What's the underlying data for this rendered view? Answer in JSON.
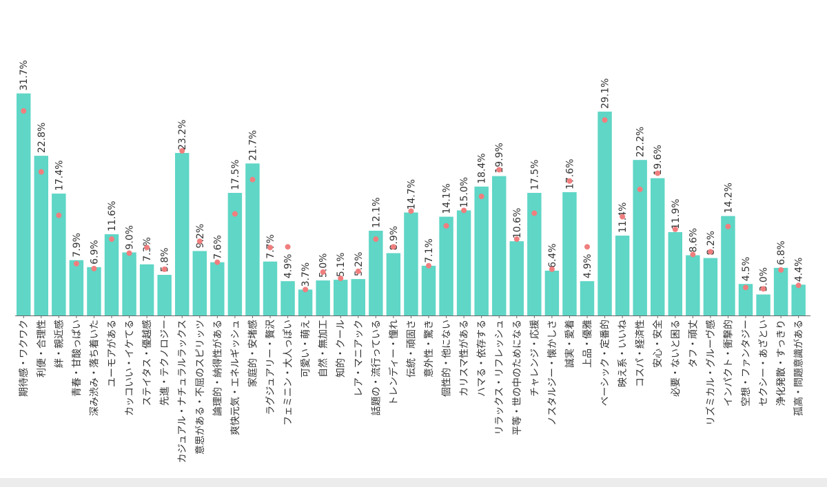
{
  "colors": {
    "bar": "#5fd6c6",
    "marker": "#f07e7e",
    "text": "#333333",
    "axis": "#666666"
  },
  "chart_data": {
    "type": "bar",
    "title": "",
    "xlabel": "",
    "ylabel": "",
    "ylim": [
      0,
      35
    ],
    "grid": false,
    "legend": "none",
    "categories": [
      "期待感・ワクワク",
      "利便・合理性",
      "絆・親近感",
      "青春・甘酸っぱい",
      "深み渋み・落ち着いた",
      "ユーモアがある",
      "カッコいい・イケてる",
      "ステイタス・優越感",
      "先進・テクノロジー",
      "カジュアル・ナチュラルラックス",
      "意思がある・不屈のスピリッツ",
      "論理的・納得性がある",
      "爽快元気・エネルギッシュ",
      "家庭的・安堵感",
      "ラグジュアリー・贅沢",
      "フェミニン・大人っぽい",
      "可愛い・萌え",
      "自然・無加工",
      "知的・クール",
      "レア・マニアック",
      "話題の・流行っている",
      "トレンディー・憧れ",
      "伝統・頑固さ",
      "意外性・驚き",
      "個性的・他にない",
      "カリスマ性がある",
      "ハマる・依存する",
      "リラックス・リフレッシュ",
      "平等・世の中のためになる",
      "チャレンジ・応援",
      "ノスタルジー・懐かしさ",
      "誠実・愛着",
      "上品・優雅",
      "ベーシック・定番的",
      "映え系・いいね",
      "コスパ・経済性",
      "安心・安全",
      "必要・ないと困る",
      "タフ・頑丈",
      "リズミカル・グルーヴ感",
      "インパクト・衝撃的",
      "空想・ファンタジー",
      "セクシー・あざとい",
      "浄化発散・すっきり",
      "孤高・問題意識がある"
    ],
    "series": [
      {
        "type": "bar",
        "values": [
          31.7,
          22.8,
          17.4,
          7.9,
          6.9,
          11.6,
          9.0,
          7.3,
          5.8,
          23.2,
          9.2,
          7.6,
          17.5,
          21.7,
          7.7,
          4.9,
          3.7,
          5.0,
          5.1,
          5.2,
          12.1,
          8.9,
          14.7,
          7.1,
          14.1,
          15.0,
          18.4,
          19.9,
          10.6,
          17.5,
          6.4,
          17.6,
          4.9,
          29.1,
          11.4,
          22.2,
          19.6,
          11.9,
          8.6,
          8.2,
          14.2,
          4.5,
          3.0,
          6.8,
          4.4
        ],
        "data_labels": [
          "31.7%",
          "22.8%",
          "17.4%",
          "7.9%",
          "6.9%",
          "11.6%",
          "9.0%",
          "7.3%",
          "5.8%",
          "23.2%",
          "9.2%",
          "7.6%",
          "17.5%",
          "21.7%",
          "7.7%",
          "4.9%",
          "3.7%",
          "5.0%",
          "5.1%",
          "5.2%",
          "12.1%",
          "8.9%",
          "14.7%",
          "7.1%",
          "14.1%",
          "15.0%",
          "18.4%",
          "19.9%",
          "10.6%",
          "17.5%",
          "6.4%",
          "17.6%",
          "4.9%",
          "29.1%",
          "11.4%",
          "22.2%",
          "19.6%",
          "11.9%",
          "8.6%",
          "8.2%",
          "14.2%",
          "4.5%",
          "3.0%",
          "6.8%",
          "4.4%"
        ]
      },
      {
        "type": "scatter",
        "values": [
          29.2,
          20.5,
          14.3,
          7.4,
          6.7,
          10.9,
          8.9,
          9.7,
          6.6,
          23.5,
          10.6,
          7.6,
          14.5,
          19.4,
          9.7,
          9.8,
          3.7,
          6.2,
          5.3,
          6.3,
          10.9,
          9.8,
          14.9,
          7.1,
          12.8,
          15.0,
          17.0,
          20.8,
          10.9,
          14.6,
          6.6,
          19.2,
          9.8,
          27.9,
          14.1,
          18.0,
          20.3,
          12.3,
          8.7,
          9.1,
          12.7,
          4.0,
          3.8,
          6.5,
          4.3
        ]
      }
    ]
  }
}
